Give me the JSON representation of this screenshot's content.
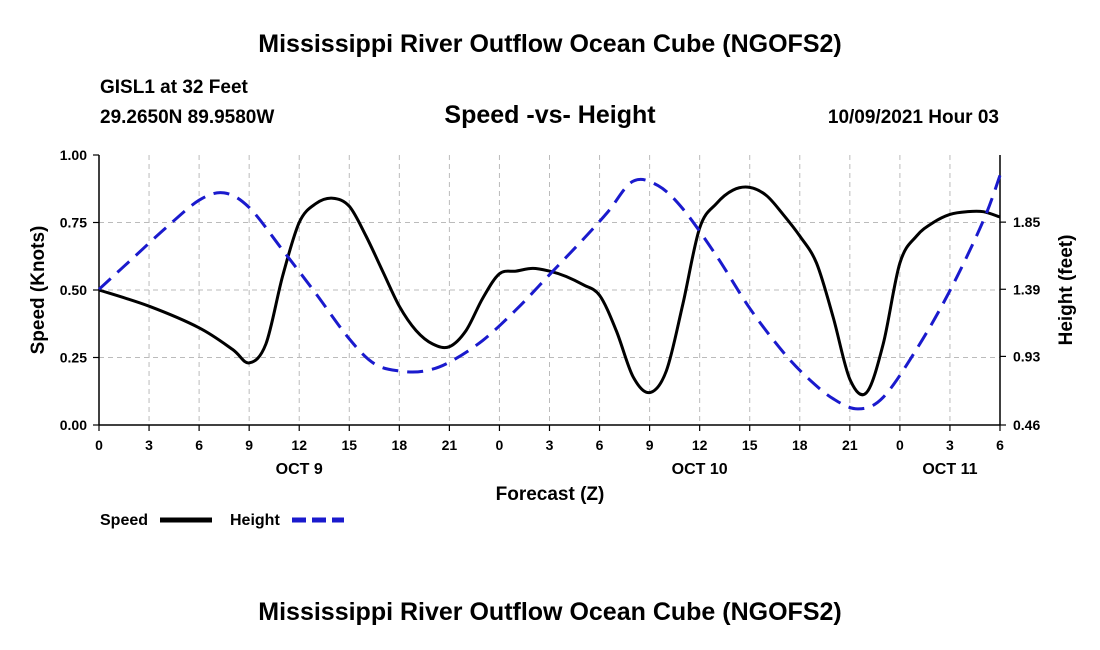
{
  "page": {
    "title_top": "Mississippi River Outflow Ocean Cube (NGOFS2)",
    "title_bottom": "Mississippi River Outflow Ocean Cube (NGOFS2)",
    "station": "GISL1 at 32 Feet",
    "coords": "29.2650N  89.9580W",
    "subtitle": "Speed -vs- Height",
    "datetime": "10/09/2021 Hour 03"
  },
  "colors": {
    "speed": "#000000",
    "height": "#1a1acd",
    "grid": "#bbbbbb"
  },
  "chart_data": {
    "type": "line",
    "title": "Speed -vs- Height",
    "xlabel": "Forecast (Z)",
    "ylabel": "Speed (Knots)",
    "y2label": "Height (feet)",
    "xlim": [
      0,
      54
    ],
    "ylim": [
      0,
      1.0
    ],
    "y2lim": [
      0.46,
      2.31
    ],
    "x_ticks": [
      0,
      3,
      6,
      9,
      12,
      15,
      18,
      21,
      24,
      27,
      30,
      33,
      36,
      39,
      42,
      45,
      48,
      51,
      54
    ],
    "x_tick_labels": [
      "0",
      "3",
      "6",
      "9",
      "12",
      "15",
      "18",
      "21",
      "0",
      "3",
      "6",
      "9",
      "12",
      "15",
      "18",
      "21",
      "0",
      "3",
      "6"
    ],
    "date_labels": [
      {
        "x": 12,
        "label": "OCT 9"
      },
      {
        "x": 36,
        "label": "OCT 10"
      },
      {
        "x": 51,
        "label": "OCT 11"
      }
    ],
    "y_ticks": [
      0,
      0.25,
      0.5,
      0.75,
      1.0
    ],
    "y_tick_labels": [
      "0.00",
      "0.25",
      "0.50",
      "0.75",
      "1.00"
    ],
    "y2_ticks": [
      0.46,
      0.93,
      1.39,
      1.85
    ],
    "y2_tick_labels": [
      "0.46",
      "0.93",
      "1.39",
      "1.85"
    ],
    "legend": [
      {
        "name": "Speed",
        "style": "solid"
      },
      {
        "name": "Height",
        "style": "dashed"
      }
    ],
    "series": [
      {
        "name": "Speed",
        "axis": "left",
        "x": [
          0,
          3,
          6,
          8,
          9,
          10,
          11,
          12,
          13,
          14,
          15,
          16,
          17,
          18,
          19,
          20,
          21,
          22,
          23,
          24,
          25,
          26,
          27,
          28,
          29,
          30,
          31,
          32,
          33,
          34,
          35,
          36,
          37,
          38,
          39,
          40,
          41,
          42,
          43,
          44,
          45,
          46,
          47,
          48,
          49,
          50,
          51,
          52,
          53,
          54
        ],
        "values": [
          0.5,
          0.44,
          0.36,
          0.28,
          0.23,
          0.3,
          0.55,
          0.75,
          0.82,
          0.84,
          0.81,
          0.7,
          0.57,
          0.44,
          0.35,
          0.3,
          0.29,
          0.35,
          0.47,
          0.56,
          0.57,
          0.58,
          0.57,
          0.55,
          0.52,
          0.48,
          0.35,
          0.18,
          0.12,
          0.2,
          0.45,
          0.73,
          0.82,
          0.87,
          0.88,
          0.85,
          0.78,
          0.7,
          0.6,
          0.4,
          0.17,
          0.12,
          0.3,
          0.6,
          0.7,
          0.75,
          0.78,
          0.79,
          0.79,
          0.77
        ]
      },
      {
        "name": "Height",
        "axis": "right",
        "x": [
          0,
          2,
          4,
          6,
          7.5,
          9,
          11,
          13,
          15,
          16.5,
          18,
          19.5,
          21,
          23,
          25,
          27,
          29,
          30.5,
          32,
          33.5,
          35,
          37,
          39,
          41,
          42.5,
          44,
          45.5,
          47,
          49,
          51,
          53,
          54
        ],
        "values": [
          1.39,
          1.6,
          1.81,
          2.0,
          2.05,
          1.95,
          1.66,
          1.36,
          1.05,
          0.88,
          0.83,
          0.83,
          0.89,
          1.04,
          1.25,
          1.49,
          1.73,
          1.92,
          2.13,
          2.1,
          1.94,
          1.62,
          1.26,
          0.96,
          0.78,
          0.64,
          0.57,
          0.65,
          0.98,
          1.38,
          1.86,
          2.17
        ]
      }
    ]
  }
}
